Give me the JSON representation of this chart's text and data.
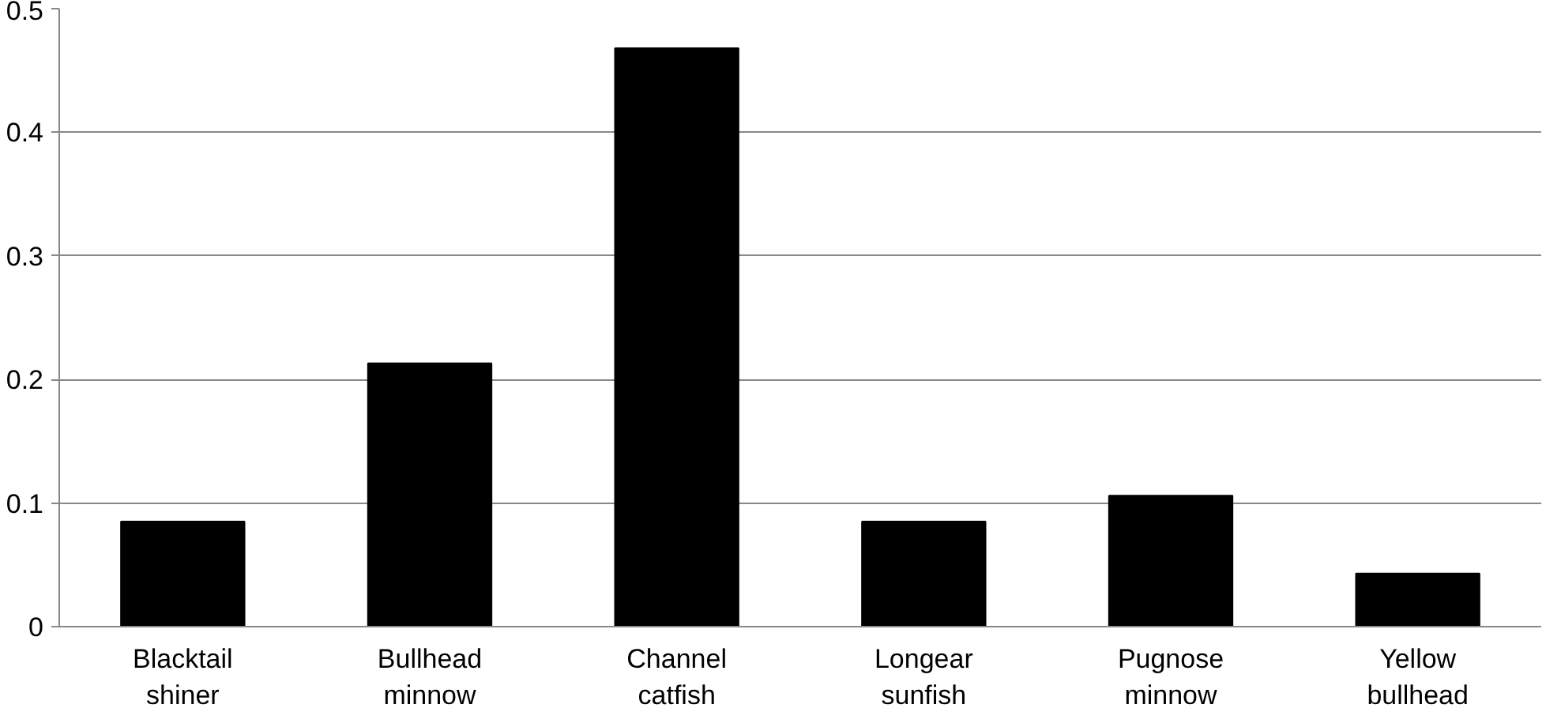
{
  "chart_data": {
    "type": "bar",
    "categories": [
      "Blacktail shiner",
      "Bullhead minnow",
      "Channel catfish",
      "Longear sunfish",
      "Pugnose minnow",
      "Yellow bullhead"
    ],
    "values": [
      0.085,
      0.213,
      0.468,
      0.085,
      0.106,
      0.043
    ],
    "color": "#000000",
    "ylim": [
      0,
      0.5
    ],
    "yticks": [
      0,
      0.1,
      0.2,
      0.3,
      0.4,
      0.5
    ],
    "grid": "y"
  }
}
